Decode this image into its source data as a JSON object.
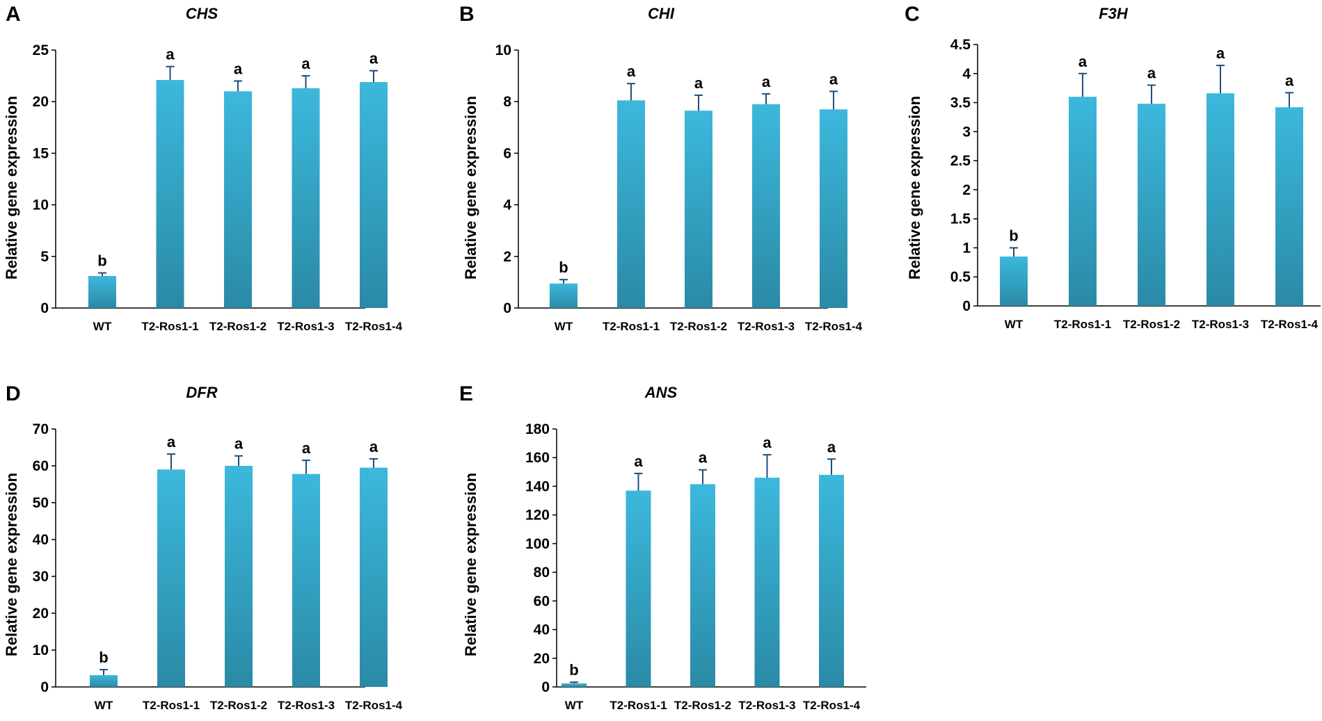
{
  "colors": {
    "bar_top": "#3cb8dc",
    "bar_bottom": "#2a8aa6",
    "error_bar": "#1f4e79",
    "axis": "#000000"
  },
  "chart_data": [
    {
      "type": "bar",
      "panel_letter": "A",
      "title": "CHS",
      "ylabel": "Relative gene expression",
      "xlabel": "",
      "categories": [
        "WT",
        "T2-Ros1-1",
        "T2-Ros1-2",
        "T2-Ros1-3",
        "T2-Ros1-4"
      ],
      "values": [
        3.1,
        22.1,
        21.0,
        21.3,
        21.9
      ],
      "errors": [
        0.3,
        1.3,
        1.0,
        1.2,
        1.1
      ],
      "significance": [
        "b",
        "a",
        "a",
        "a",
        "a"
      ],
      "ylim": [
        0,
        25
      ],
      "yticks": [
        0,
        5,
        10,
        15,
        20,
        25
      ],
      "ytick_labels": [
        "0",
        "5",
        "10",
        "15",
        "20",
        "25"
      ]
    },
    {
      "type": "bar",
      "panel_letter": "B",
      "title": "CHI",
      "ylabel": "Relative gene expression",
      "xlabel": "",
      "categories": [
        "WT",
        "T2-Ros1-1",
        "T2-Ros1-2",
        "T2-Ros1-3",
        "T2-Ros1-4"
      ],
      "values": [
        0.95,
        8.05,
        7.65,
        7.9,
        7.7
      ],
      "errors": [
        0.15,
        0.65,
        0.6,
        0.4,
        0.7
      ],
      "significance": [
        "b",
        "a",
        "a",
        "a",
        "a"
      ],
      "ylim": [
        0,
        10
      ],
      "yticks": [
        0,
        2,
        4,
        6,
        8,
        10
      ],
      "ytick_labels": [
        "0",
        "2",
        "4",
        "6",
        "8",
        "10"
      ]
    },
    {
      "type": "bar",
      "panel_letter": "C",
      "title": "F3H",
      "ylabel": "Relative gene expression",
      "xlabel": "",
      "categories": [
        "WT",
        "T2-Ros1-1",
        "T2-Ros1-2",
        "T2-Ros1-3",
        "T2-Ros1-4"
      ],
      "values": [
        0.85,
        3.6,
        3.48,
        3.66,
        3.42
      ],
      "errors": [
        0.15,
        0.4,
        0.32,
        0.48,
        0.25
      ],
      "significance": [
        "b",
        "a",
        "a",
        "a",
        "a"
      ],
      "ylim": [
        0,
        4.5
      ],
      "yticks": [
        0,
        0.5,
        1,
        1.5,
        2,
        2.5,
        3,
        3.5,
        4,
        4.5
      ],
      "ytick_labels": [
        "0",
        "0.5",
        "1",
        "1.5",
        "2",
        "2.5",
        "3",
        "3.5",
        "4",
        "4.5"
      ]
    },
    {
      "type": "bar",
      "panel_letter": "D",
      "title": "DFR",
      "ylabel": "Relative gene expression",
      "xlabel": "",
      "categories": [
        "WT",
        "T2-Ros1-1",
        "T2-Ros1-2",
        "T2-Ros1-3",
        "T2-Ros1-4"
      ],
      "values": [
        3.2,
        59.0,
        60.0,
        57.8,
        59.5
      ],
      "errors": [
        1.5,
        4.2,
        2.7,
        3.7,
        2.4
      ],
      "significance": [
        "b",
        "a",
        "a",
        "a",
        "a"
      ],
      "ylim": [
        0,
        70
      ],
      "yticks": [
        0,
        10,
        20,
        30,
        40,
        50,
        60,
        70
      ],
      "ytick_labels": [
        "0",
        "10",
        "20",
        "30",
        "40",
        "50",
        "60",
        "70"
      ]
    },
    {
      "type": "bar",
      "panel_letter": "E",
      "title": "ANS",
      "ylabel": "Relative gene expression",
      "xlabel": "",
      "categories": [
        "WT",
        "T2-Ros1-1",
        "T2-Ros1-2",
        "T2-Ros1-3",
        "T2-Ros1-4"
      ],
      "values": [
        2.5,
        137.0,
        141.5,
        146.0,
        148.0
      ],
      "errors": [
        0.8,
        12.0,
        10.0,
        16.0,
        11.0
      ],
      "significance": [
        "b",
        "a",
        "a",
        "a",
        "a"
      ],
      "ylim": [
        0,
        180
      ],
      "yticks": [
        0,
        20,
        40,
        60,
        80,
        100,
        120,
        140,
        160,
        180
      ],
      "ytick_labels": [
        "0",
        "20",
        "40",
        "60",
        "80",
        "100",
        "120",
        "140",
        "160",
        "180"
      ]
    }
  ]
}
